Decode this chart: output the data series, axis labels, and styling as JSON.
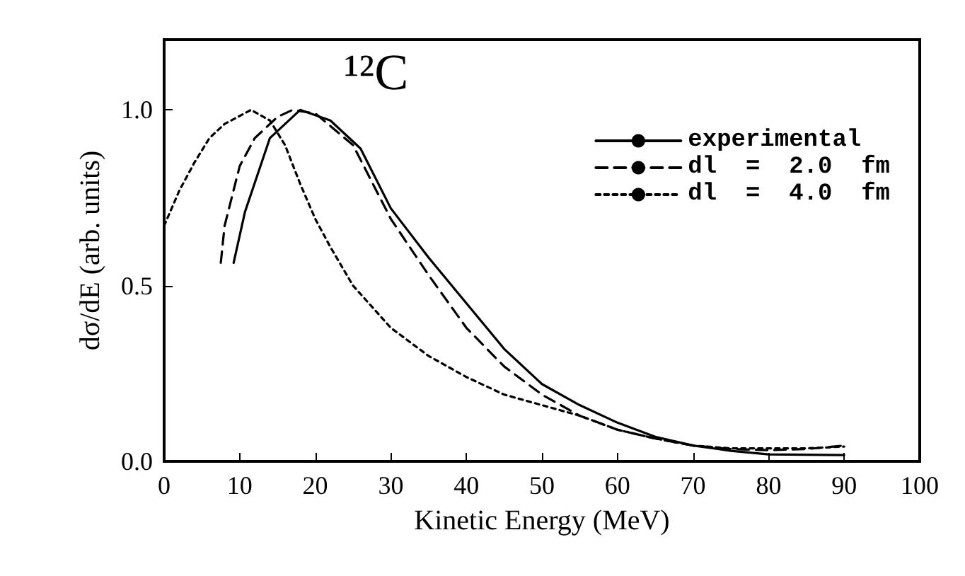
{
  "chart_data": {
    "type": "line",
    "xlabel": "Kinetic Energy (MeV)",
    "ylabel": "dσ/dE (arb. units)",
    "annotations": [
      "¹²C"
    ],
    "xlim": [
      0,
      100
    ],
    "xticks": [
      0,
      10,
      20,
      30,
      40,
      50,
      60,
      70,
      80,
      90,
      100
    ],
    "ylim": [
      0,
      1.2
    ],
    "yticks": [
      {
        "value": 0,
        "label": "0.0"
      },
      {
        "value": 0.5,
        "label": "0.5"
      },
      {
        "value": 1,
        "label": "1.0"
      }
    ],
    "grid": false,
    "legend": "top right",
    "marker": "none",
    "series": [
      {
        "name": "experimental",
        "color": "#000000",
        "line_style": "solid",
        "x": [
          9.2,
          10.7,
          14,
          18,
          22,
          26,
          30,
          35,
          40,
          45,
          50,
          55,
          60,
          65,
          70,
          75,
          80,
          90
        ],
        "values": [
          0.565,
          0.71,
          0.92,
          1.0,
          0.97,
          0.89,
          0.72,
          0.58,
          0.45,
          0.32,
          0.22,
          0.16,
          0.11,
          0.07,
          0.045,
          0.03,
          0.02,
          0.018
        ]
      },
      {
        "name": "dl  =  2.0  fm",
        "color": "#000000",
        "line_style": "dashed",
        "x": [
          7.5,
          8,
          10,
          12,
          15,
          17,
          20,
          25,
          30,
          35,
          40,
          45,
          50,
          55,
          60,
          65,
          70,
          75,
          80,
          85,
          90
        ],
        "values": [
          0.565,
          0.67,
          0.84,
          0.92,
          0.98,
          1.0,
          0.99,
          0.9,
          0.69,
          0.53,
          0.38,
          0.27,
          0.19,
          0.13,
          0.09,
          0.065,
          0.045,
          0.035,
          0.032,
          0.035,
          0.045
        ]
      },
      {
        "name": "dl  =  4.0  fm",
        "color": "#000000",
        "line_style": "dotted",
        "x": [
          0,
          2,
          4,
          6,
          8,
          11.5,
          14,
          16,
          18,
          20,
          22,
          25,
          30,
          35,
          40,
          45,
          50,
          55,
          60,
          65,
          70,
          75,
          80,
          85,
          90
        ],
        "values": [
          0.67,
          0.77,
          0.85,
          0.92,
          0.96,
          1.0,
          0.97,
          0.9,
          0.79,
          0.69,
          0.61,
          0.5,
          0.38,
          0.3,
          0.24,
          0.19,
          0.16,
          0.13,
          0.09,
          0.065,
          0.045,
          0.037,
          0.037,
          0.037,
          0.042
        ]
      }
    ]
  }
}
